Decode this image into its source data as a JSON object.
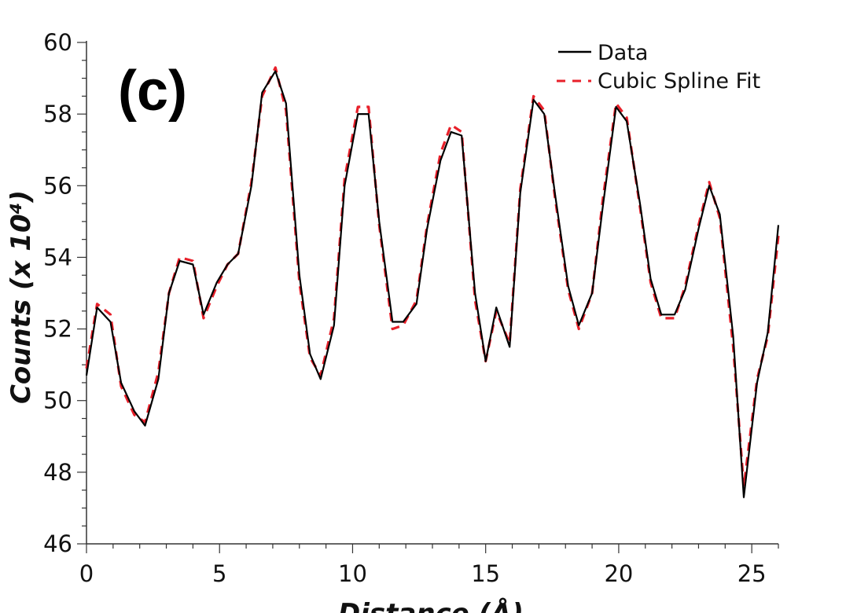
{
  "panel_label": "(c)",
  "chart_data": {
    "type": "line",
    "title": "",
    "xlabel": "Distance (Å)",
    "ylabel": "Counts (x 10⁴)",
    "xlim": [
      0,
      26
    ],
    "ylim": [
      46,
      60
    ],
    "xticks": [
      0,
      5,
      10,
      15,
      20,
      25
    ],
    "yticks": [
      46,
      48,
      50,
      52,
      54,
      56,
      58,
      60
    ],
    "grid": false,
    "legend": "top-right",
    "series": [
      {
        "name": "Data",
        "color": "#000000",
        "style": "solid",
        "x": [
          0,
          0.4,
          0.9,
          1.3,
          1.8,
          2.2,
          2.7,
          3.1,
          3.5,
          4.0,
          4.4,
          4.9,
          5.3,
          5.7,
          6.2,
          6.6,
          7.1,
          7.5,
          8.0,
          8.4,
          8.8,
          9.3,
          9.7,
          10.2,
          10.6,
          11.0,
          11.5,
          11.9,
          12.4,
          12.8,
          13.3,
          13.7,
          14.1,
          14.6,
          15.0,
          15.4,
          15.9,
          16.3,
          16.8,
          17.2,
          17.6,
          18.1,
          18.5,
          19.0,
          19.4,
          19.9,
          20.3,
          20.8,
          21.2,
          21.6,
          22.1,
          22.5,
          23.0,
          23.4,
          23.8,
          24.3,
          24.7,
          25.2,
          25.6,
          26.0
        ],
        "y": [
          50.7,
          52.6,
          52.2,
          50.5,
          49.7,
          49.3,
          50.6,
          53.0,
          53.9,
          53.8,
          52.4,
          53.3,
          53.8,
          54.1,
          56.0,
          58.6,
          59.2,
          58.3,
          53.5,
          51.3,
          50.6,
          52.1,
          56.0,
          58.0,
          58.0,
          55.0,
          52.2,
          52.2,
          52.7,
          54.8,
          56.7,
          57.5,
          57.4,
          53.0,
          51.1,
          52.6,
          51.5,
          55.8,
          58.4,
          58.0,
          55.8,
          53.2,
          52.1,
          53.0,
          55.4,
          58.2,
          57.8,
          55.5,
          53.4,
          52.4,
          52.4,
          53.1,
          54.8,
          56.0,
          55.2,
          51.8,
          47.3,
          50.5,
          51.9,
          54.9
        ]
      },
      {
        "name": "Cubic Spline Fit",
        "color": "#e8202a",
        "style": "dashed",
        "x": [
          0,
          0.4,
          0.9,
          1.3,
          1.8,
          2.2,
          2.7,
          3.1,
          3.5,
          4.0,
          4.4,
          4.9,
          5.3,
          5.7,
          6.2,
          6.6,
          7.1,
          7.5,
          8.0,
          8.4,
          8.8,
          9.3,
          9.7,
          10.2,
          10.6,
          11.0,
          11.5,
          11.9,
          12.4,
          12.8,
          13.3,
          13.7,
          14.1,
          14.6,
          15.0,
          15.4,
          15.9,
          16.3,
          16.8,
          17.2,
          17.6,
          18.1,
          18.5,
          19.0,
          19.4,
          19.9,
          20.3,
          20.8,
          21.2,
          21.6,
          22.1,
          22.5,
          23.0,
          23.4,
          23.8,
          24.3,
          24.7,
          25.2,
          25.6,
          26.0
        ],
        "y": [
          50.9,
          52.7,
          52.4,
          50.4,
          49.6,
          49.4,
          50.8,
          53.0,
          54.0,
          53.9,
          52.3,
          53.2,
          53.8,
          54.1,
          56.1,
          58.5,
          59.3,
          58.1,
          53.3,
          51.2,
          50.7,
          52.3,
          56.2,
          58.2,
          58.2,
          54.9,
          52.0,
          52.1,
          52.8,
          54.9,
          56.9,
          57.7,
          57.5,
          52.8,
          51.1,
          52.5,
          51.6,
          55.9,
          58.5,
          58.1,
          55.7,
          53.1,
          52.0,
          53.0,
          55.6,
          58.3,
          57.9,
          55.4,
          53.3,
          52.3,
          52.3,
          53.2,
          54.9,
          56.1,
          55.1,
          51.5,
          47.6,
          50.6,
          51.8,
          54.6
        ]
      }
    ]
  }
}
